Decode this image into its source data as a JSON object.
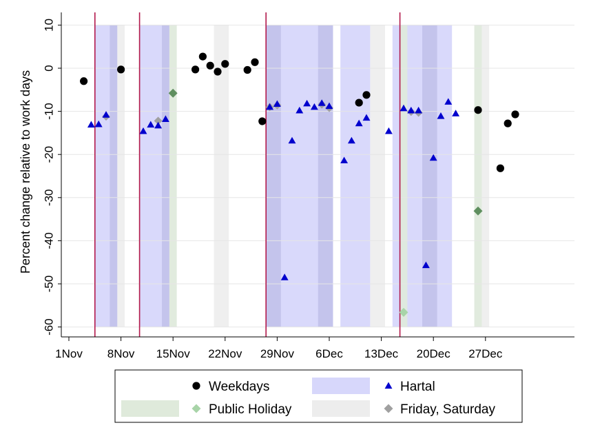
{
  "chart_data": {
    "type": "scatter",
    "ylabel": "Percent change relative to work days",
    "xlabel": "",
    "xlim_day": [
      -1,
      60
    ],
    "ylim": [
      -62,
      11
    ],
    "yticks": [
      10,
      0,
      -10,
      -20,
      -30,
      -40,
      -50,
      -60
    ],
    "xticks": [
      {
        "day": 0,
        "label": "1Nov"
      },
      {
        "day": 7,
        "label": "8Nov"
      },
      {
        "day": 14,
        "label": "15Nov"
      },
      {
        "day": 21,
        "label": "22Nov"
      },
      {
        "day": 28,
        "label": "29Nov"
      },
      {
        "day": 35,
        "label": "6Dec"
      },
      {
        "day": 42,
        "label": "13Dec"
      },
      {
        "day": 49,
        "label": "20Dec"
      },
      {
        "day": 56,
        "label": "27Dec"
      }
    ],
    "grid": true,
    "ranges": {
      "hartal": [
        [
          3.5,
          6.5
        ],
        [
          9.5,
          13.5
        ],
        [
          26.5,
          35.5
        ],
        [
          36.5,
          40.5
        ],
        [
          43.5,
          51.5
        ]
      ],
      "friday_saturday": [
        [
          5.5,
          7.5
        ],
        [
          12.5,
          14.5
        ],
        [
          19.5,
          21.5
        ],
        [
          26.5,
          28.5
        ],
        [
          33.5,
          35.5
        ],
        [
          40.5,
          42.5
        ],
        [
          47.5,
          49.5
        ],
        [
          54.5,
          56.5
        ]
      ],
      "public_holiday": [
        [
          13.5,
          14.5
        ],
        [
          44.5,
          45.5
        ],
        [
          54.5,
          55.5
        ]
      ]
    },
    "vlines": [
      3.5,
      9.5,
      26.5,
      44.5
    ],
    "series": [
      {
        "name": "Weekdays",
        "marker": "circle",
        "points": [
          [
            2,
            -3
          ],
          [
            7,
            -0.3
          ],
          [
            17,
            -0.3
          ],
          [
            18,
            2.7
          ],
          [
            19,
            0.6
          ],
          [
            20,
            -0.8
          ],
          [
            21,
            1
          ],
          [
            24,
            -0.4
          ],
          [
            25,
            1.4
          ],
          [
            26,
            -12.3
          ],
          [
            39,
            -8
          ],
          [
            40,
            -6.2
          ],
          [
            55,
            -9.7
          ],
          [
            58,
            -23.2
          ],
          [
            59,
            -12.8
          ],
          [
            60,
            -10.7
          ]
        ]
      },
      {
        "name": "Hartal",
        "marker": "triangle",
        "points": [
          [
            3,
            -13.1
          ],
          [
            4,
            -13
          ],
          [
            5,
            -10.8
          ],
          [
            10,
            -14.6
          ],
          [
            11,
            -13.1
          ],
          [
            12,
            -13.3
          ],
          [
            13,
            -11.8
          ],
          [
            27,
            -9
          ],
          [
            28,
            -8.3
          ],
          [
            29,
            -48.5
          ],
          [
            30,
            -16.8
          ],
          [
            31,
            -9.8
          ],
          [
            32,
            -8.2
          ],
          [
            33,
            -9
          ],
          [
            34,
            -8.1
          ],
          [
            35,
            -8.8
          ],
          [
            37,
            -21.4
          ],
          [
            38,
            -16.8
          ],
          [
            39,
            -12.8
          ],
          [
            40,
            -11.5
          ],
          [
            43,
            -14.6
          ],
          [
            45,
            -9.3
          ],
          [
            46,
            -9.8
          ],
          [
            47,
            -9.8
          ],
          [
            48,
            -45.7
          ],
          [
            49,
            -20.8
          ],
          [
            50,
            -11.1
          ],
          [
            51,
            -7.8
          ],
          [
            52,
            -10.5
          ]
        ]
      },
      {
        "name": "Public Holiday",
        "marker": "diamond",
        "points": [
          [
            14,
            -5.8
          ],
          [
            45,
            -56.6
          ],
          [
            55,
            -33.1
          ]
        ]
      },
      {
        "name": "Friday, Saturday",
        "marker": "diamond",
        "points": [
          [
            5,
            -11.2
          ],
          [
            12,
            -12.2
          ],
          [
            27,
            -9
          ],
          [
            28,
            -8.6
          ],
          [
            34,
            -8.4
          ],
          [
            35,
            -9.2
          ],
          [
            46,
            -10.1
          ],
          [
            47,
            -10.3
          ]
        ]
      }
    ],
    "legend": {
      "placement": "bottom",
      "entries": [
        {
          "label": "Weekdays",
          "kind": "circle"
        },
        {
          "label": "Hartal",
          "kind": "band+triangle"
        },
        {
          "label": "Public Holiday",
          "kind": "band+diamond"
        },
        {
          "label": "Friday, Saturday",
          "kind": "band+diamond"
        }
      ]
    },
    "colors": {
      "hartal_band": "#d7d7fb",
      "friday_band": "#ededed",
      "holiday_band": "#dfeadb",
      "vline": "#b2184b",
      "weekday_marker": "#000000",
      "hartal_marker": "#0000cd",
      "holiday_marker": "#a8d4a8",
      "friday_marker": "#a0a0a0",
      "holiday_dark_marker": "#5f8f5f",
      "grid": "#e6e6e6"
    }
  }
}
